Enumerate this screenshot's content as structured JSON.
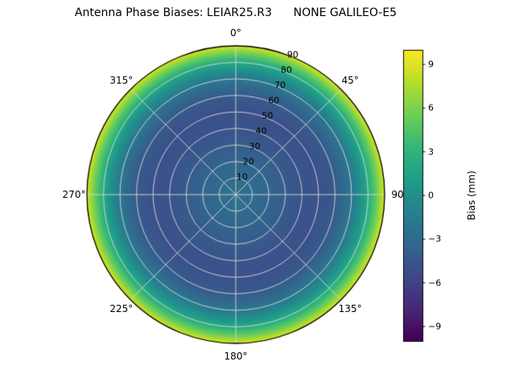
{
  "chart_data": {
    "type": "heatmap",
    "projection": "polar",
    "title": "Antenna Phase Biases: LEIAR25.R3      NONE GALILEO-E5",
    "theta_zero": "top",
    "theta_direction": "clockwise",
    "radial_range": [
      0,
      90
    ],
    "grid_color": "#d9d9d9",
    "angular_ticks": [
      {
        "angle_deg": 0,
        "label": "0°"
      },
      {
        "angle_deg": 45,
        "label": "45°"
      },
      {
        "angle_deg": 90,
        "label": "90"
      },
      {
        "angle_deg": 135,
        "label": "135°"
      },
      {
        "angle_deg": 180,
        "label": "180°"
      },
      {
        "angle_deg": 225,
        "label": "225°"
      },
      {
        "angle_deg": 270,
        "label": "270°"
      },
      {
        "angle_deg": 315,
        "label": "315°"
      }
    ],
    "radial_ticks": [
      {
        "zenith_deg": 10,
        "label": "10"
      },
      {
        "zenith_deg": 20,
        "label": "20"
      },
      {
        "zenith_deg": 30,
        "label": "30"
      },
      {
        "zenith_deg": 40,
        "label": "40"
      },
      {
        "zenith_deg": 50,
        "label": "50"
      },
      {
        "zenith_deg": 60,
        "label": "60"
      },
      {
        "zenith_deg": 70,
        "label": "70"
      },
      {
        "zenith_deg": 80,
        "label": "80"
      },
      {
        "zenith_deg": 90,
        "label": "90"
      }
    ],
    "radial_label_angle_deg": 22.5,
    "bias_profile": {
      "zenith_deg": [
        0,
        10,
        20,
        30,
        40,
        50,
        60,
        65,
        70,
        75,
        80,
        85,
        90
      ],
      "bias_mm": [
        -2.5,
        -3.0,
        -3.5,
        -4.2,
        -4.8,
        -5.0,
        -4.3,
        -3.3,
        -2.0,
        -0.2,
        2.2,
        5.2,
        8.8
      ]
    },
    "colorbar": {
      "label": "Bias (mm)",
      "vmin": -10,
      "vmax": 10,
      "ticks": [
        {
          "value": 9,
          "label": "9"
        },
        {
          "value": 6,
          "label": "6"
        },
        {
          "value": 3,
          "label": "3"
        },
        {
          "value": 0,
          "label": "0"
        },
        {
          "value": -3,
          "label": "−3"
        },
        {
          "value": -6,
          "label": "−6"
        },
        {
          "value": -9,
          "label": "−9"
        }
      ]
    },
    "colormap": {
      "name": "viridis",
      "anchors": [
        "#440154",
        "#482878",
        "#3e4989",
        "#31688e",
        "#26828e",
        "#1f9e89",
        "#35b779",
        "#6ece58",
        "#b5de2b",
        "#fde725"
      ]
    }
  }
}
